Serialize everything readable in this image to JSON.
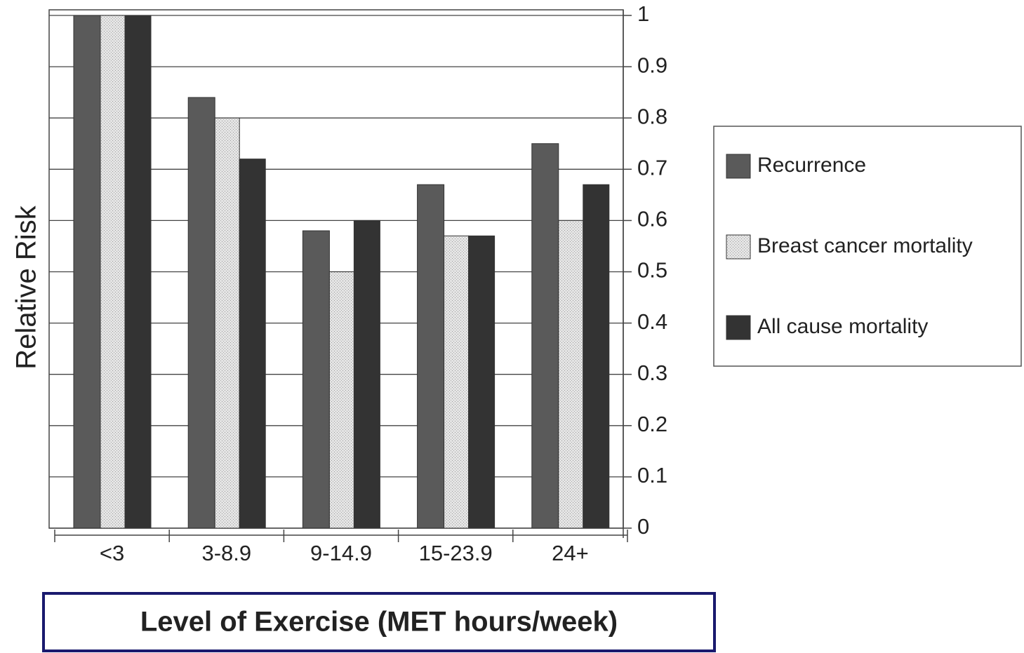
{
  "chart_data": {
    "type": "bar",
    "y_label": "Relative Risk",
    "x_label": "Level of Exercise (MET hours/week)",
    "categories": [
      "<3",
      "3-8.9",
      "9-14.9",
      "15-23.9",
      "24+"
    ],
    "series": [
      {
        "name": "Recurrence",
        "color": "#5a5a5a",
        "values": [
          1.0,
          0.84,
          0.58,
          0.67,
          0.75
        ]
      },
      {
        "name": "Breast cancer mortality",
        "color": "#dcdcdc",
        "values": [
          1.0,
          0.8,
          0.5,
          0.57,
          0.6
        ]
      },
      {
        "name": "All cause mortality",
        "color": "#333333",
        "values": [
          1.0,
          0.72,
          0.6,
          0.57,
          0.67
        ]
      }
    ],
    "ylim": [
      0,
      1
    ],
    "yticks": [
      0,
      0.1,
      0.2,
      0.3,
      0.4,
      0.5,
      0.6,
      0.7,
      0.8,
      0.9,
      1
    ],
    "grid": true,
    "legend": "right"
  }
}
